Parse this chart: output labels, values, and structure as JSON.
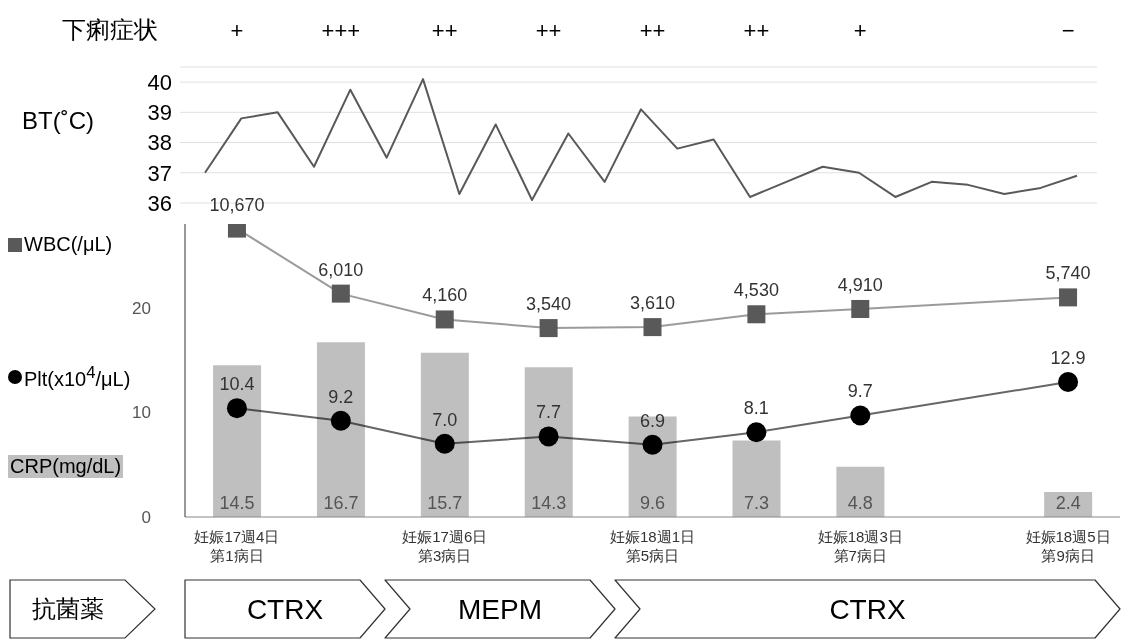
{
  "chart_data": [
    {
      "type": "other",
      "title": "下痢症状",
      "categories": [
        "+",
        "+++",
        "++",
        "++",
        "++",
        "++",
        "+",
        null,
        "−"
      ]
    },
    {
      "type": "line",
      "ylabel": "BT(˚C)",
      "categories": [
        null,
        null,
        null,
        null,
        null,
        null,
        null,
        null,
        null,
        null,
        null,
        null,
        null,
        null,
        null,
        null,
        null,
        null,
        null,
        null,
        null,
        null,
        null,
        null,
        null
      ],
      "series": [
        {
          "color": "#595959",
          "values": [
            37.0,
            38.8,
            39.0,
            37.2,
            39.75,
            37.5,
            40.1,
            36.3,
            38.6,
            36.1,
            38.3,
            36.7,
            39.1,
            37.8,
            38.1,
            36.2,
            36.7,
            37.2,
            37.0,
            36.2,
            36.7,
            36.6,
            36.3,
            36.5,
            36.9
          ]
        }
      ],
      "ylim": [
        36,
        40.5
      ],
      "yticks": [
        36,
        37,
        38,
        39,
        40
      ],
      "grid": "y",
      "marker": "none"
    },
    {
      "type": "bar",
      "categories": [
        "妊娠17週4日第1病日",
        null,
        "妊娠17週6日第3病日",
        null,
        "妊娠18週1日第5病日",
        null,
        "妊娠18週3日第7病日",
        null,
        "妊娠18週5日第9病日"
      ],
      "series": [
        {
          "name": "CRP(mg/dL)",
          "type": "bar",
          "color": "#bfbfbf",
          "values": [
            14.5,
            16.7,
            15.7,
            14.3,
            9.6,
            7.3,
            4.8,
            null,
            2.4
          ],
          "value_labels": [
            "14.5",
            "16.7",
            "15.7",
            "14.3",
            "9.6",
            "7.3",
            "4.8",
            null,
            "2.4"
          ]
        },
        {
          "name": "Plt(x10$^{4}$/μL)",
          "type": "line",
          "color": "#000000",
          "marker": "circle",
          "values": [
            10.4,
            9.2,
            7.0,
            7.7,
            6.9,
            8.1,
            9.7,
            null,
            12.9
          ],
          "value_labels": [
            "10.4",
            "9.2",
            "7.0",
            "7.7",
            "6.9",
            "8.1",
            "9.7",
            null,
            "12.9"
          ]
        },
        {
          "name": "WBC(/μL)",
          "type": "line",
          "color": "#595959",
          "marker": "square",
          "axis": "y2",
          "values": [
            10670,
            6010,
            4160,
            3540,
            3610,
            4530,
            4910,
            null,
            5740
          ],
          "value_labels": [
            "10,670",
            "6,010",
            "4,160",
            "3,540",
            "3,610",
            "4,530",
            "4,910",
            null,
            "5,740"
          ]
        }
      ],
      "ylim": [
        0,
        28
      ],
      "yticks": [
        0,
        10,
        20
      ],
      "y2lim": [
        -10000,
        11000
      ],
      "legend": "left"
    },
    {
      "type": "other",
      "title": "抗菌薬",
      "categories": [
        "CTRX",
        "MEPM",
        "CTRX"
      ]
    }
  ]
}
